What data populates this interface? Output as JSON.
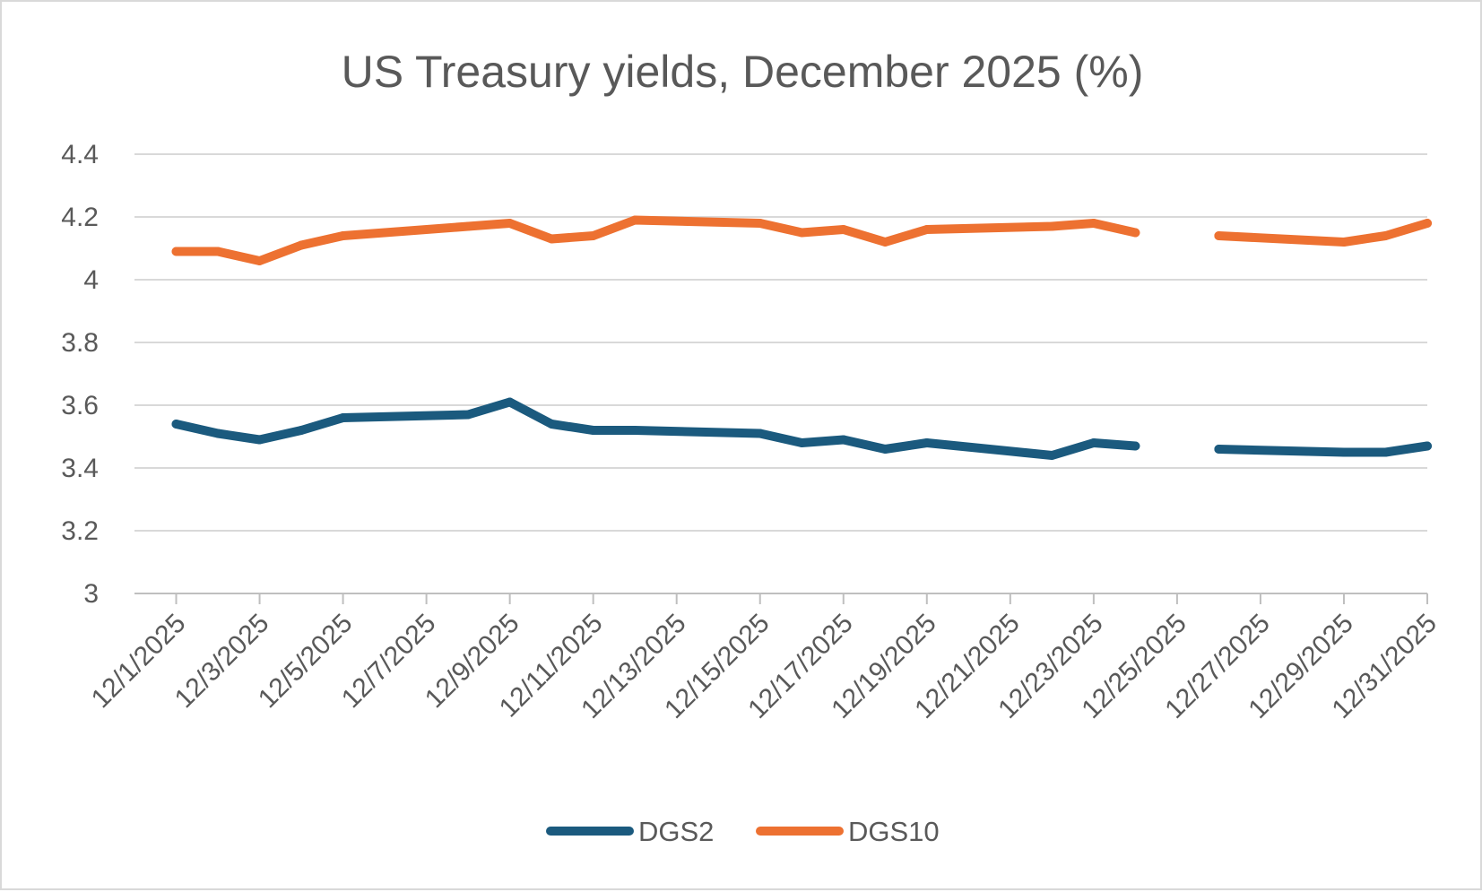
{
  "chart_data": {
    "type": "line",
    "title": "US Treasury yields, December 2025 (%)",
    "xlabel": "",
    "ylabel": "",
    "ylim": [
      3,
      4.4
    ],
    "yticks": [
      3,
      3.2,
      3.4,
      3.6,
      3.8,
      4,
      4.2,
      4.4
    ],
    "ytick_labels": [
      "3",
      "3.2",
      "3.4",
      "3.6",
      "3.8",
      "4",
      "4.2",
      "4.4"
    ],
    "xlim_days": [
      0,
      31
    ],
    "xticks": [
      {
        "day": 1,
        "label": "12/1/2025"
      },
      {
        "day": 3,
        "label": "12/3/2025"
      },
      {
        "day": 5,
        "label": "12/5/2025"
      },
      {
        "day": 7,
        "label": "12/7/2025"
      },
      {
        "day": 9,
        "label": "12/9/2025"
      },
      {
        "day": 11,
        "label": "12/11/2025"
      },
      {
        "day": 13,
        "label": "12/13/2025"
      },
      {
        "day": 15,
        "label": "12/15/2025"
      },
      {
        "day": 17,
        "label": "12/17/2025"
      },
      {
        "day": 19,
        "label": "12/19/2025"
      },
      {
        "day": 21,
        "label": "12/21/2025"
      },
      {
        "day": 23,
        "label": "12/23/2025"
      },
      {
        "day": 25,
        "label": "12/25/2025"
      },
      {
        "day": 27,
        "label": "12/27/2025"
      },
      {
        "day": 29,
        "label": "12/29/2025"
      },
      {
        "day": 31,
        "label": "12/31/2025"
      }
    ],
    "x": [
      1,
      2,
      3,
      4,
      5,
      8,
      9,
      10,
      11,
      12,
      15,
      16,
      17,
      18,
      19,
      22,
      23,
      24,
      25,
      26,
      29,
      30,
      31
    ],
    "series": [
      {
        "name": "DGS2",
        "color": "#1b5a7e",
        "values": [
          3.54,
          3.51,
          3.49,
          3.52,
          3.56,
          3.57,
          3.61,
          3.54,
          3.52,
          3.52,
          3.51,
          3.48,
          3.49,
          3.46,
          3.48,
          3.44,
          3.48,
          3.47,
          null,
          3.46,
          3.45,
          3.45,
          3.47
        ]
      },
      {
        "name": "DGS10",
        "color": "#ed7131",
        "values": [
          4.09,
          4.09,
          4.06,
          4.11,
          4.14,
          4.17,
          4.18,
          4.13,
          4.14,
          4.19,
          4.18,
          4.15,
          4.16,
          4.12,
          4.16,
          4.17,
          4.18,
          4.15,
          null,
          4.14,
          4.12,
          4.14,
          4.18
        ]
      }
    ],
    "legend": "bottom",
    "grid": true
  }
}
